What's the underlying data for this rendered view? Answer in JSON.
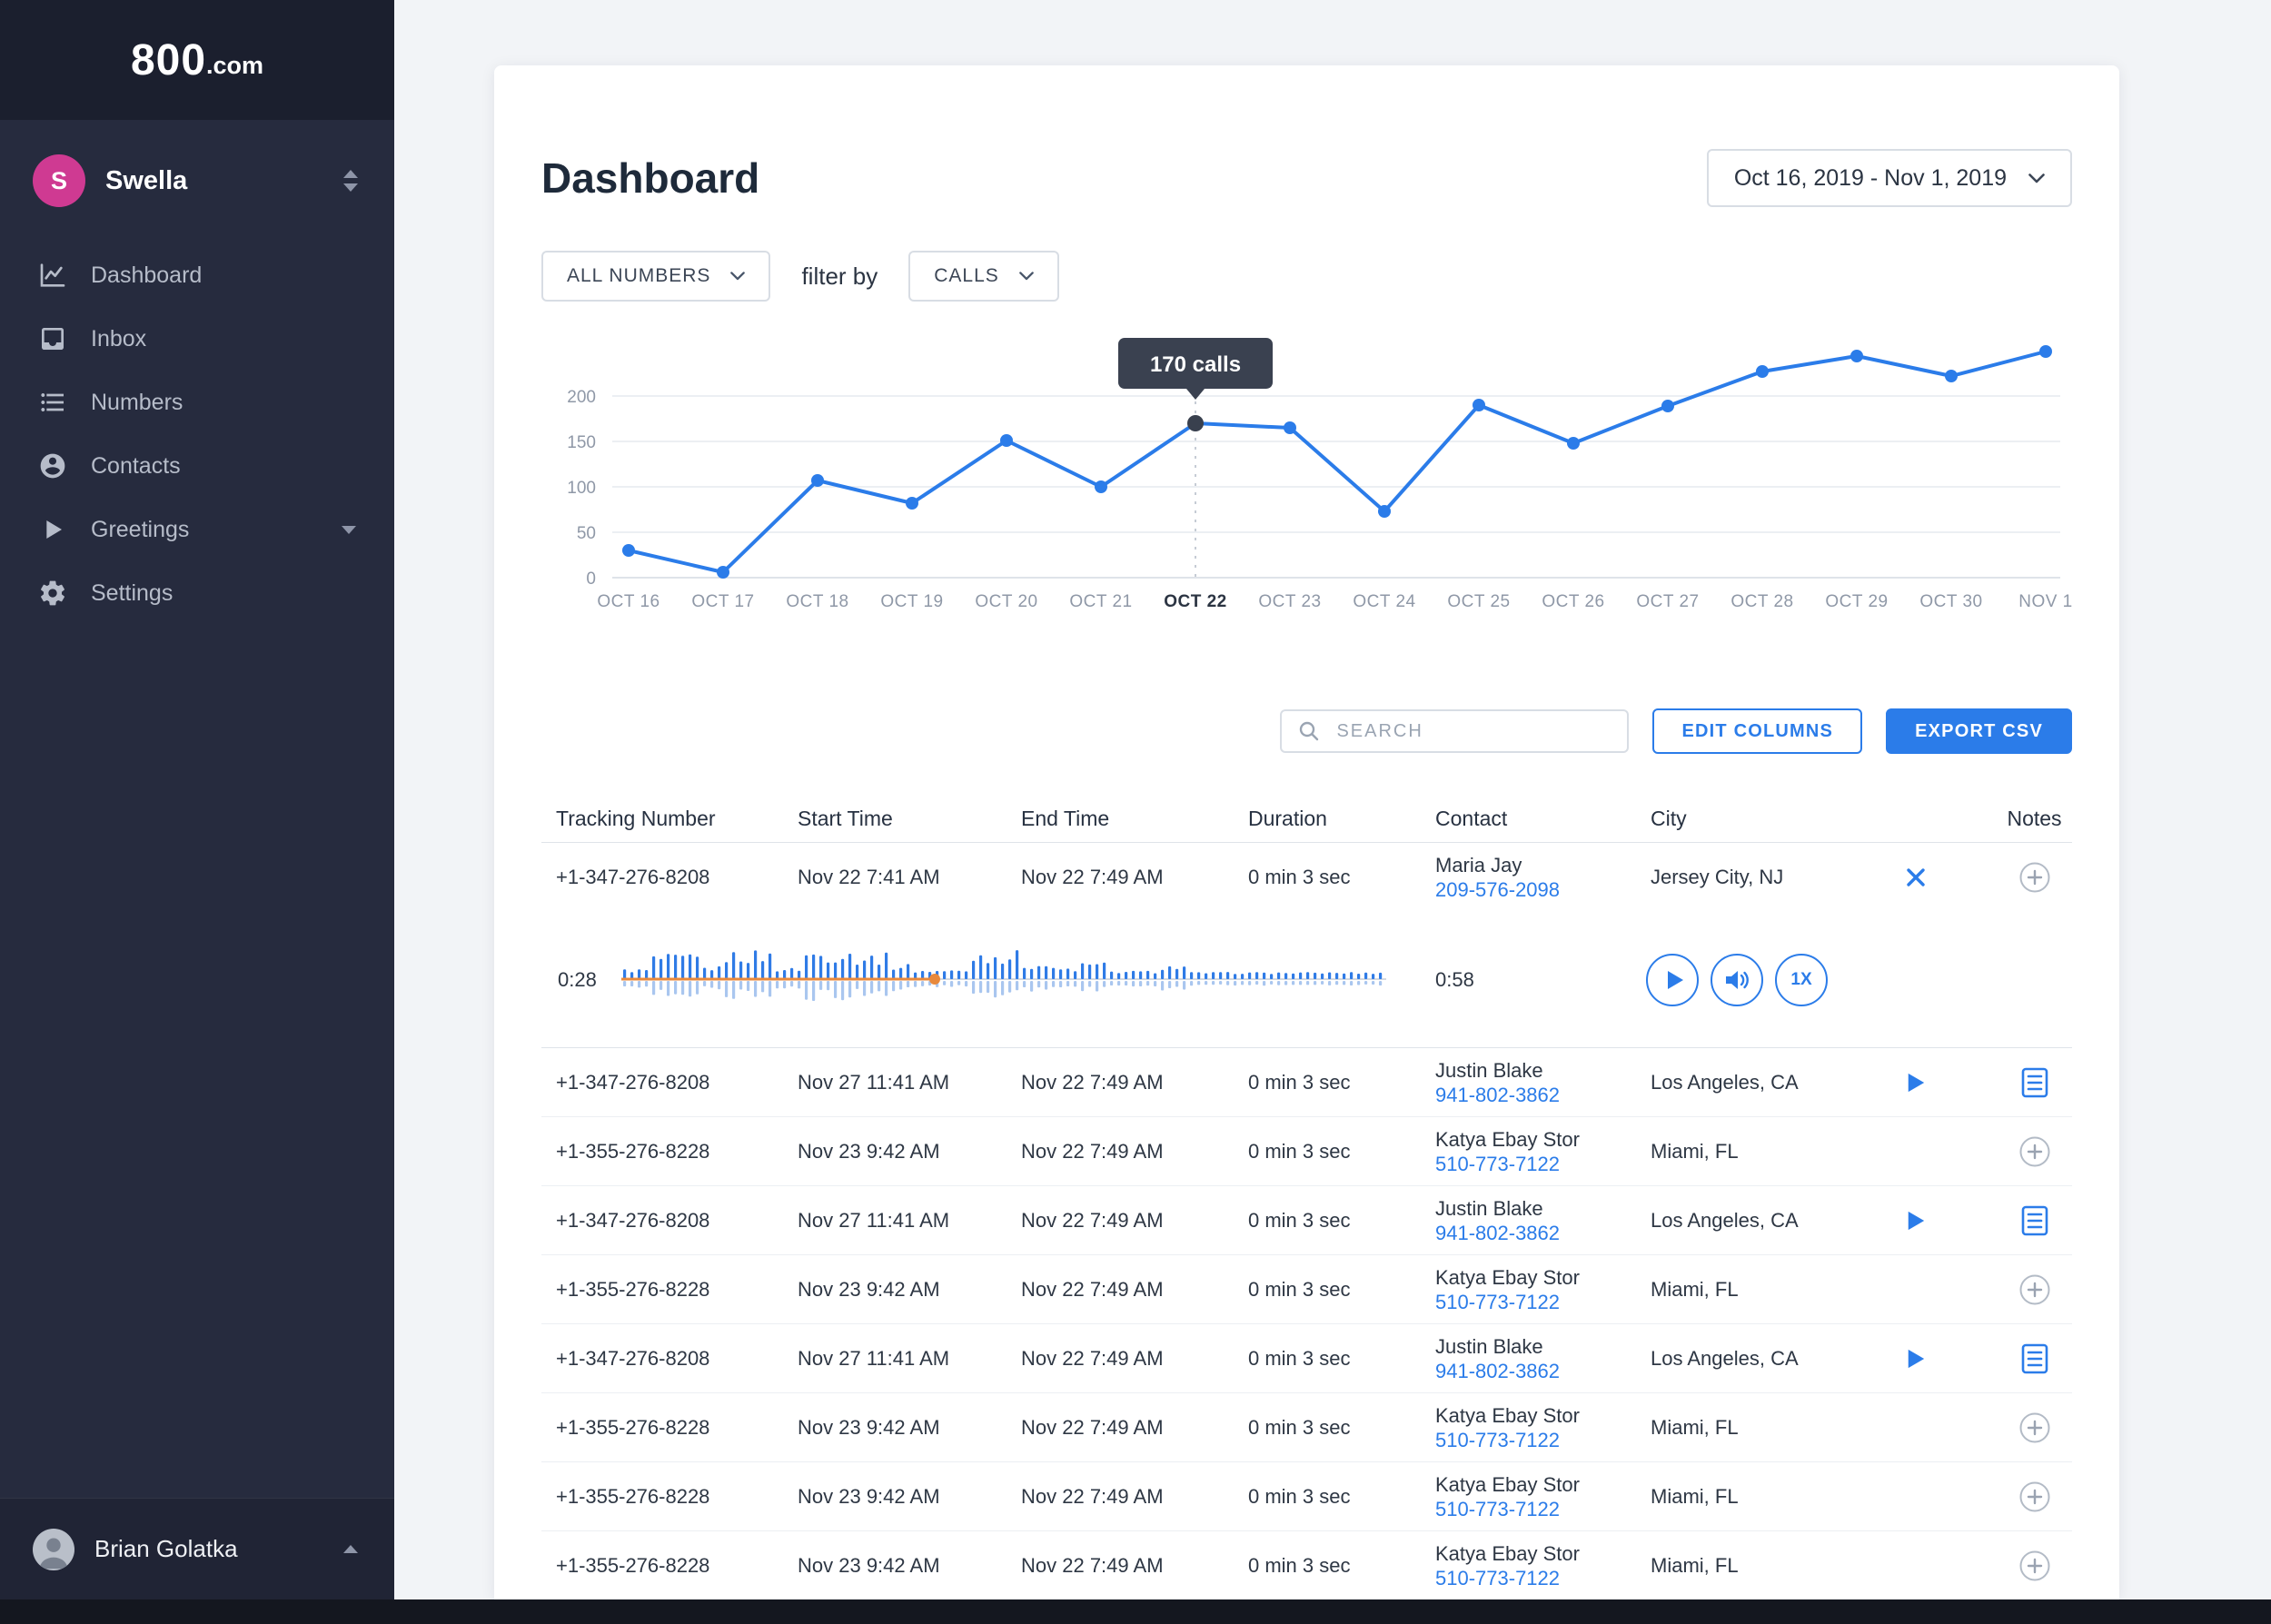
{
  "sidebar": {
    "logo": {
      "main": "800",
      "suffix": ".com"
    },
    "account": {
      "initial": "S",
      "name": "Swella"
    },
    "nav": {
      "items": [
        {
          "label": "Dashboard"
        },
        {
          "label": "Inbox"
        },
        {
          "label": "Numbers"
        },
        {
          "label": "Contacts"
        },
        {
          "label": "Greetings"
        },
        {
          "label": "Settings"
        }
      ]
    },
    "user": {
      "name": "Brian Golatka"
    }
  },
  "header": {
    "title": "Dashboard",
    "date_range": "Oct 16, 2019 - Nov 1, 2019"
  },
  "filters": {
    "numbers_label": "ALL NUMBERS",
    "filter_by": "filter by",
    "metric_label": "CALLS"
  },
  "chart_data": {
    "type": "line",
    "categories": [
      "OCT 16",
      "OCT 17",
      "OCT 18",
      "OCT 19",
      "OCT 20",
      "OCT 21",
      "OCT 22",
      "OCT 23",
      "OCT 24",
      "OCT 25",
      "OCT 26",
      "OCT 27",
      "OCT 28",
      "OCT 29",
      "OCT 30",
      "NOV 1"
    ],
    "values": [
      30,
      6,
      107,
      82,
      151,
      100,
      170,
      165,
      73,
      190,
      148,
      189,
      227,
      244,
      222,
      249
    ],
    "title": "",
    "xlabel": "",
    "ylabel": "",
    "ylim": [
      0,
      250
    ],
    "yticks": [
      0,
      50,
      100,
      150,
      200
    ],
    "grid": true,
    "legend": "none",
    "line_color": "#2b7ce9",
    "highlight": {
      "index": 6,
      "category": "OCT 22",
      "value": 170,
      "tooltip": "170 calls"
    }
  },
  "actions": {
    "search_placeholder": "SEARCH",
    "edit_columns": "EDIT COLUMNS",
    "export_csv": "EXPORT CSV"
  },
  "table": {
    "headers": [
      "Tracking Number",
      "Start Time",
      "End Time",
      "Duration",
      "Contact",
      "City",
      "",
      "Notes"
    ],
    "rows": [
      {
        "tracking": "+1-347-276-8208",
        "start": "Nov 22 7:41 AM",
        "end": "Nov 22 7:49 AM",
        "duration": "0 min 3 sec",
        "contact_name": "Maria Jay",
        "contact_phone": "209-576-2098",
        "city": "Jersey City, NJ",
        "action": "close",
        "note": "add",
        "expanded": true
      },
      {
        "tracking": "+1-347-276-8208",
        "start": "Nov 27 11:41 AM",
        "end": "Nov 22 7:49 AM",
        "duration": "0 min 3 sec",
        "contact_name": "Justin Blake",
        "contact_phone": "941-802-3862",
        "city": "Los Angeles, CA",
        "action": "play",
        "note": "doc"
      },
      {
        "tracking": "+1-355-276-8228",
        "start": "Nov 23 9:42 AM",
        "end": "Nov 22 7:49 AM",
        "duration": "0 min 3 sec",
        "contact_name": "Katya Ebay Stor",
        "contact_phone": "510-773-7122",
        "city": "Miami, FL",
        "action": "none",
        "note": "add"
      },
      {
        "tracking": "+1-347-276-8208",
        "start": "Nov 27 11:41 AM",
        "end": "Nov 22 7:49 AM",
        "duration": "0 min 3 sec",
        "contact_name": "Justin Blake",
        "contact_phone": "941-802-3862",
        "city": "Los Angeles, CA",
        "action": "play",
        "note": "doc"
      },
      {
        "tracking": "+1-355-276-8228",
        "start": "Nov 23 9:42 AM",
        "end": "Nov 22 7:49 AM",
        "duration": "0 min 3 sec",
        "contact_name": "Katya Ebay Stor",
        "contact_phone": "510-773-7122",
        "city": "Miami, FL",
        "action": "none",
        "note": "add"
      },
      {
        "tracking": "+1-347-276-8208",
        "start": "Nov 27 11:41 AM",
        "end": "Nov 22 7:49 AM",
        "duration": "0 min 3 sec",
        "contact_name": "Justin Blake",
        "contact_phone": "941-802-3862",
        "city": "Los Angeles, CA",
        "action": "play",
        "note": "doc"
      },
      {
        "tracking": "+1-355-276-8228",
        "start": "Nov 23 9:42 AM",
        "end": "Nov 22 7:49 AM",
        "duration": "0 min 3 sec",
        "contact_name": "Katya Ebay Stor",
        "contact_phone": "510-773-7122",
        "city": "Miami, FL",
        "action": "none",
        "note": "add"
      },
      {
        "tracking": "+1-355-276-8228",
        "start": "Nov 23 9:42 AM",
        "end": "Nov 22 7:49 AM",
        "duration": "0 min 3 sec",
        "contact_name": "Katya Ebay Stor",
        "contact_phone": "510-773-7122",
        "city": "Miami, FL",
        "action": "none",
        "note": "add"
      },
      {
        "tracking": "+1-355-276-8228",
        "start": "Nov 23 9:42 AM",
        "end": "Nov 22 7:49 AM",
        "duration": "0 min 3 sec",
        "contact_name": "Katya Ebay Stor",
        "contact_phone": "510-773-7122",
        "city": "Miami, FL",
        "action": "none",
        "note": "add"
      }
    ]
  },
  "audio_player": {
    "current_time": "0:28",
    "total_time": "0:58",
    "speed_label": "1X",
    "progress": 0.41
  }
}
